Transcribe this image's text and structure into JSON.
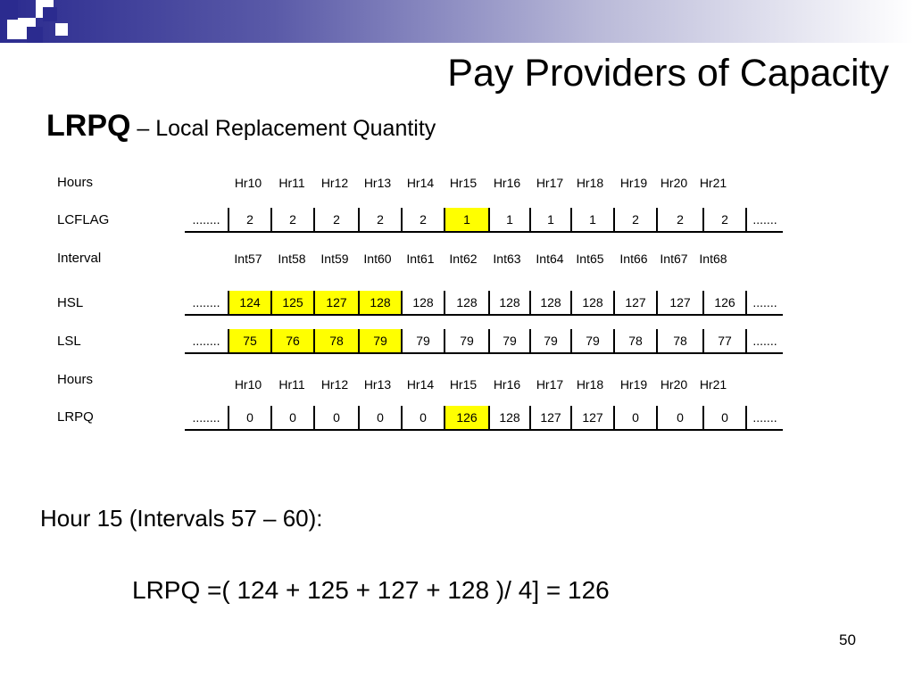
{
  "slide": {
    "title": "Pay Providers of Capacity",
    "subtitle_abbr": "LRPQ",
    "subtitle_desc": " – Local Replacement Quantity",
    "page_number": "50"
  },
  "table": {
    "hours_label": "Hours",
    "hours": [
      "Hr10",
      "Hr11",
      "Hr12",
      "Hr13",
      "Hr14",
      "Hr15",
      "Hr16",
      "Hr17",
      "Hr18",
      "Hr19",
      "Hr20",
      "Hr21"
    ],
    "lcflag": {
      "label": "LCFLAG",
      "lead": "........",
      "values": [
        "2",
        "2",
        "2",
        "2",
        "2",
        "1",
        "1",
        "1",
        "1",
        "2",
        "2",
        "2"
      ],
      "trail": ".......",
      "highlight": [
        5
      ]
    },
    "interval_label": "Interval",
    "intervals": [
      "Int57",
      "Int58",
      "Int59",
      "Int60",
      "Int61",
      "Int62",
      "Int63",
      "Int64",
      "Int65",
      "Int66",
      "Int67",
      "Int68"
    ],
    "hsl": {
      "label": "HSL",
      "lead": "........",
      "values": [
        "124",
        "125",
        "127",
        "128",
        "128",
        "128",
        "128",
        "128",
        "128",
        "127",
        "127",
        "126"
      ],
      "trail": ".......",
      "highlight": [
        0,
        1,
        2,
        3
      ]
    },
    "lsl": {
      "label": "LSL",
      "lead": "........",
      "values": [
        "75",
        "76",
        "78",
        "79",
        "79",
        "79",
        "79",
        "79",
        "79",
        "78",
        "78",
        "77"
      ],
      "trail": ".......",
      "highlight": [
        0,
        1,
        2,
        3
      ]
    },
    "hours2_label": "Hours",
    "lrpq": {
      "label": "LRPQ",
      "lead": "........",
      "values": [
        "0",
        "0",
        "0",
        "0",
        "0",
        "126",
        "128",
        "127",
        "127",
        "0",
        "0",
        "0"
      ],
      "trail": ".......",
      "highlight": [
        5
      ]
    },
    "highlight_color": "#ffff00"
  },
  "formula": {
    "heading": "Hour 15 (Intervals 57 – 60):",
    "equation": "LRPQ =( 124 + 125 + 127 + 128 )/ 4] = 126"
  }
}
